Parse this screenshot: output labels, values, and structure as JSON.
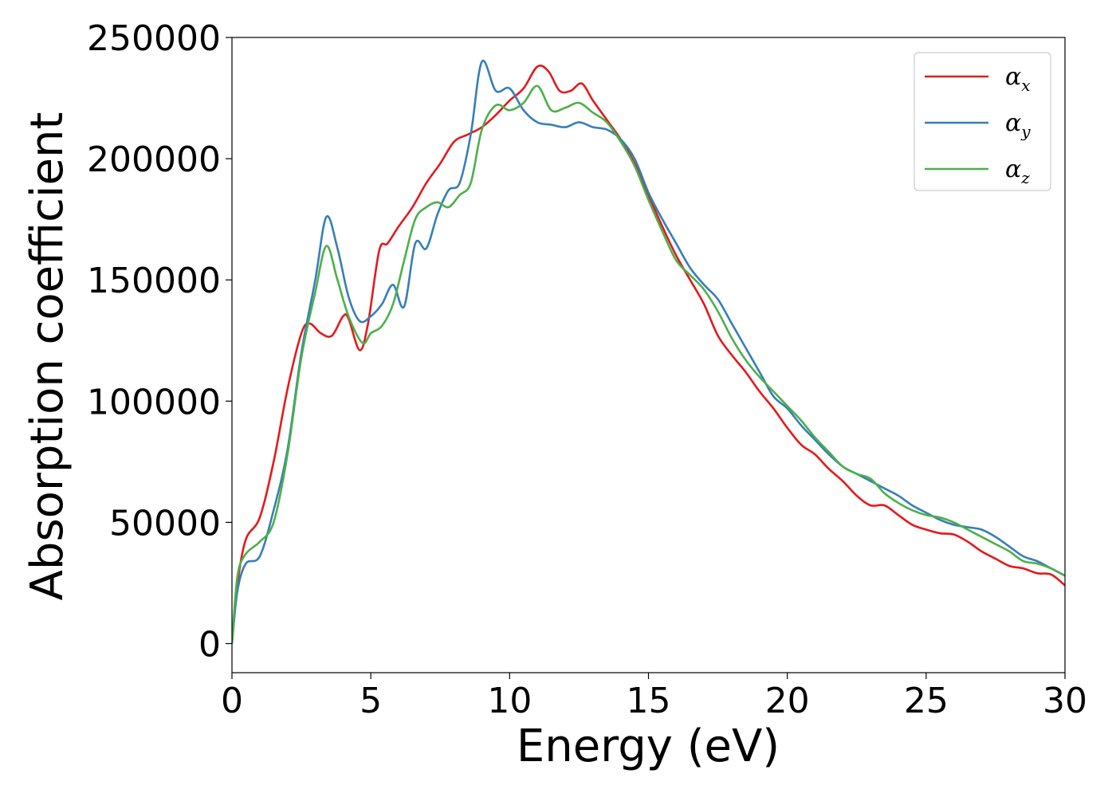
{
  "chart_data": {
    "type": "line",
    "title": "",
    "xlabel": "Energy (eV)",
    "ylabel": "Absorption coefficient",
    "xlim": [
      0,
      30
    ],
    "ylim": [
      -12000,
      250000
    ],
    "xticks": [
      0,
      5,
      10,
      15,
      20,
      25,
      30
    ],
    "xtick_labels": [
      "0",
      "5",
      "10",
      "15",
      "20",
      "25",
      "30"
    ],
    "yticks": [
      0,
      50000,
      100000,
      150000,
      200000,
      250000
    ],
    "ytick_labels": [
      "0",
      "50000",
      "100000",
      "150000",
      "200000",
      "250000"
    ],
    "grid": false,
    "legend_position": "top-right",
    "series": [
      {
        "name": "αx",
        "legend_symbol": "α",
        "legend_subscript": "x",
        "color": "#e41a1c",
        "x": [
          0,
          0.2,
          0.5,
          1,
          1.5,
          2,
          2.5,
          2.8,
          3.2,
          3.6,
          4,
          4.2,
          4.6,
          4.9,
          5.3,
          5.6,
          6,
          6.5,
          7,
          7.5,
          8,
          8.5,
          9,
          9.5,
          10,
          10.5,
          11,
          11.4,
          11.8,
          12.2,
          12.6,
          13,
          13.5,
          14,
          14.5,
          15,
          15.5,
          16,
          16.5,
          17,
          17.5,
          18,
          18.5,
          19,
          19.5,
          20,
          20.5,
          21,
          21.5,
          22,
          22.5,
          23,
          23.5,
          24,
          24.5,
          25,
          25.5,
          26,
          26.5,
          27,
          27.5,
          28,
          28.5,
          29,
          29.5,
          30
        ],
        "y": [
          0,
          25000,
          43000,
          52000,
          75000,
          105000,
          128000,
          132000,
          128000,
          127000,
          135000,
          134000,
          121000,
          132000,
          162000,
          165000,
          172000,
          180000,
          190000,
          198000,
          207000,
          210000,
          213000,
          218000,
          224000,
          229000,
          238000,
          236000,
          228000,
          228000,
          231000,
          224000,
          216000,
          208000,
          198000,
          185000,
          172000,
          160000,
          150000,
          140000,
          127000,
          119000,
          112000,
          104000,
          97000,
          89000,
          82000,
          78000,
          72000,
          67000,
          61000,
          57000,
          57000,
          53000,
          49000,
          47000,
          45500,
          45000,
          42000,
          38000,
          35000,
          32000,
          31000,
          29000,
          28500,
          24000
        ]
      },
      {
        "name": "αy",
        "legend_symbol": "α",
        "legend_subscript": "y",
        "color": "#377eb8",
        "x": [
          0,
          0.2,
          0.5,
          1,
          1.5,
          2,
          2.5,
          3,
          3.4,
          3.8,
          4.2,
          4.6,
          5,
          5.4,
          5.8,
          6.2,
          6.6,
          7,
          7.4,
          7.8,
          8.2,
          8.6,
          9,
          9.5,
          10,
          10.5,
          11,
          11.5,
          12,
          12.5,
          13,
          13.5,
          14,
          14.5,
          15,
          15.5,
          16,
          16.5,
          17,
          17.5,
          18,
          18.5,
          19,
          19.5,
          20,
          20.5,
          21,
          21.5,
          22,
          22.5,
          23,
          23.5,
          24,
          24.5,
          25,
          25.5,
          26,
          26.5,
          27,
          27.5,
          28,
          28.5,
          29,
          29.5,
          30
        ],
        "y": [
          0,
          22000,
          33000,
          36000,
          55000,
          80000,
          120000,
          150000,
          176000,
          163000,
          143000,
          133000,
          135000,
          140000,
          148000,
          139000,
          165000,
          163000,
          177000,
          187000,
          190000,
          210000,
          240000,
          228000,
          229000,
          220000,
          215000,
          214000,
          213000,
          215000,
          213000,
          212000,
          208000,
          200000,
          186000,
          175000,
          165000,
          155000,
          148000,
          142000,
          132000,
          122000,
          112000,
          102000,
          97000,
          90000,
          84000,
          78000,
          73000,
          70000,
          67000,
          64000,
          61000,
          57000,
          54000,
          51000,
          49000,
          48000,
          47000,
          44000,
          40000,
          36000,
          34000,
          31000,
          28000
        ]
      },
      {
        "name": "αz",
        "legend_symbol": "α",
        "legend_subscript": "z",
        "color": "#4daf4a",
        "x": [
          0,
          0.2,
          0.5,
          1,
          1.5,
          2,
          2.5,
          3,
          3.4,
          3.8,
          4.2,
          4.7,
          5,
          5.4,
          5.8,
          6.2,
          6.6,
          7,
          7.4,
          7.8,
          8.2,
          8.6,
          9,
          9.5,
          10,
          10.5,
          11,
          11.5,
          12,
          12.5,
          13,
          13.5,
          14,
          14.5,
          15,
          15.5,
          16,
          16.5,
          17,
          17.5,
          18,
          18.5,
          19,
          19.5,
          20,
          20.5,
          21,
          21.5,
          22,
          22.5,
          23,
          23.5,
          24,
          24.5,
          25,
          25.5,
          26,
          26.5,
          27,
          27.5,
          28,
          28.5,
          29,
          29.5,
          30
        ],
        "y": [
          0,
          28000,
          37000,
          42000,
          50000,
          78000,
          118000,
          145000,
          164000,
          150000,
          135000,
          124000,
          128000,
          131000,
          140000,
          158000,
          175000,
          180000,
          182000,
          180000,
          185000,
          190000,
          212000,
          222000,
          220000,
          223000,
          230000,
          220000,
          221000,
          223000,
          219000,
          215000,
          207000,
          197000,
          183000,
          170000,
          158000,
          152000,
          146000,
          137000,
          126000,
          117000,
          110000,
          104000,
          98000,
          92000,
          85000,
          79000,
          73000,
          70000,
          68000,
          62000,
          58000,
          55000,
          53000,
          52000,
          50000,
          47000,
          44000,
          41000,
          38000,
          34000,
          33000,
          31000,
          28000
        ]
      }
    ]
  }
}
